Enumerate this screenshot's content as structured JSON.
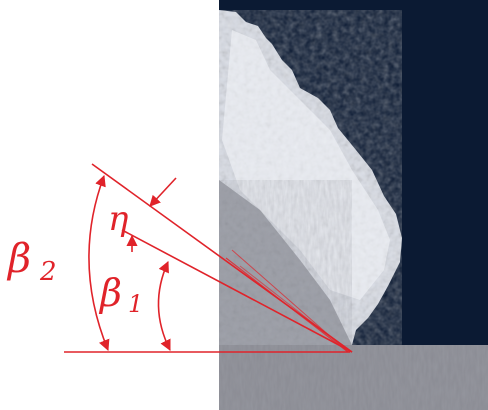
{
  "figure": {
    "labels": {
      "eta": "η",
      "beta1_main": "β",
      "beta1_sub": "1",
      "beta2_main": "β",
      "beta2_sub": "2"
    },
    "colors": {
      "annotation": "#e0232a",
      "background_right": "#0b1a33",
      "frost": "#e9edf4",
      "ground": "#8a8b93"
    }
  }
}
